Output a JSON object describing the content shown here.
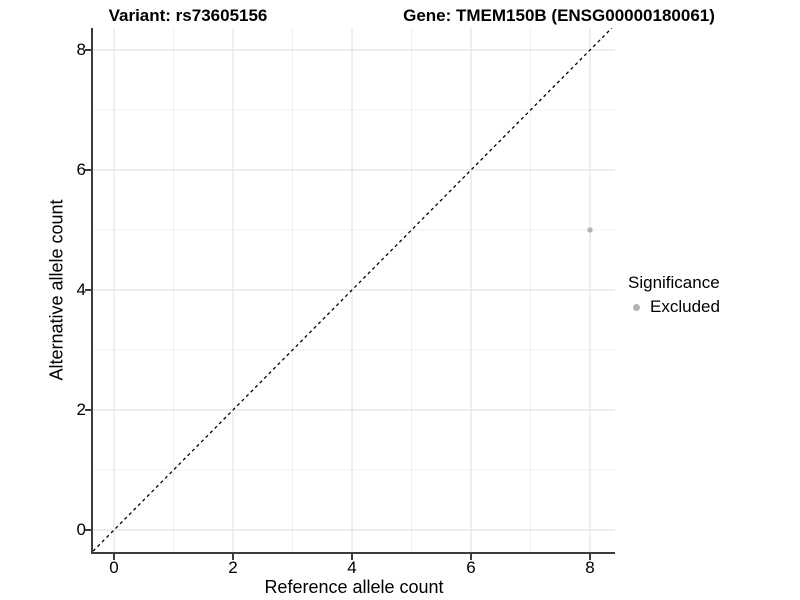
{
  "titles": {
    "variant": "Variant: rs73605156",
    "gene": "Gene: TMEM150B (ENSG00000180061)"
  },
  "axes": {
    "x": {
      "label": "Reference allele count"
    },
    "y": {
      "label": "Alternative allele count"
    }
  },
  "legend": {
    "title": "Significance",
    "items": [
      {
        "label": "Excluded",
        "color": "#b3b3b3"
      }
    ]
  },
  "chart_data": {
    "type": "scatter",
    "title_left": "Variant: rs73605156",
    "title_right": "Gene: TMEM150B (ENSG00000180061)",
    "xlabel": "Reference allele count",
    "ylabel": "Alternative allele count",
    "xlim": [
      -0.353,
      8.42
    ],
    "ylim": [
      -0.367,
      8.367
    ],
    "x_ticks": [
      0,
      2,
      4,
      6,
      8
    ],
    "y_ticks": [
      0,
      2,
      4,
      6,
      8
    ],
    "grid": "major+minor",
    "legend_position": "right",
    "points": [
      {
        "x": 8,
        "y": 5,
        "significance": "Excluded",
        "color": "#b3b3b3"
      }
    ],
    "reference_line": {
      "type": "identity",
      "slope": 1,
      "intercept": 0,
      "style": "dashed",
      "color": "#000000"
    },
    "colors": {
      "background": "#ffffff",
      "axis_line": "#3c3c3c",
      "grid_major": "#e4e4e4",
      "grid_minor": "#f1f1f1",
      "point": "#b3b3b3",
      "text": "#000000"
    }
  }
}
